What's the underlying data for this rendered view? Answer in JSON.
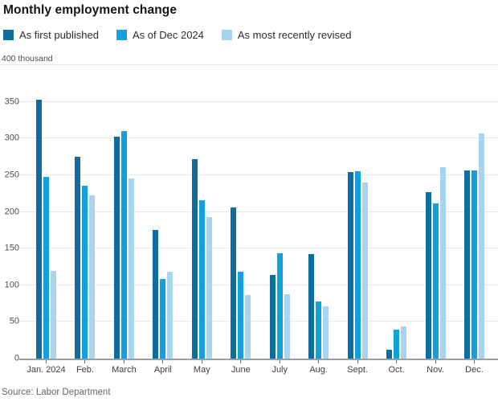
{
  "title": "Monthly employment change",
  "unit_label": "400 thousand",
  "source": "Source: Labor Department",
  "colors": {
    "series_dark": "#0d6e9d",
    "series_medium": "#149fde",
    "series_light": "#a9d4ef",
    "gridline": "#e9e9e9",
    "axis_line": "#9d9d9d"
  },
  "chart_data": {
    "type": "bar",
    "title": "Monthly employment change",
    "ylabel": "thousand",
    "xlabel": "",
    "ylim": [
      0,
      400
    ],
    "y_ticks": [
      0,
      50,
      100,
      150,
      200,
      250,
      300,
      350,
      400
    ],
    "grid": true,
    "legend_position": "top",
    "categories": [
      "Jan. 2024",
      "Feb.",
      "March",
      "April",
      "May",
      "June",
      "July",
      "Aug.",
      "Sept.",
      "Oct.",
      "Nov.",
      "Dec."
    ],
    "series": [
      {
        "name": "As first published",
        "color": "#0d6e9d",
        "values": [
          353,
          275,
          303,
          175,
          272,
          206,
          114,
          142,
          254,
          12,
          227,
          256
        ]
      },
      {
        "name": "As of Dec 2024",
        "color": "#149fde",
        "values": [
          248,
          236,
          310,
          108,
          216,
          118,
          144,
          78,
          255,
          40,
          212,
          256
        ]
      },
      {
        "name": "As most recently revised",
        "color": "#a9d4ef",
        "values": [
          119,
          222,
          246,
          118,
          193,
          87,
          88,
          71,
          240,
          44,
          261,
          307
        ]
      }
    ]
  }
}
